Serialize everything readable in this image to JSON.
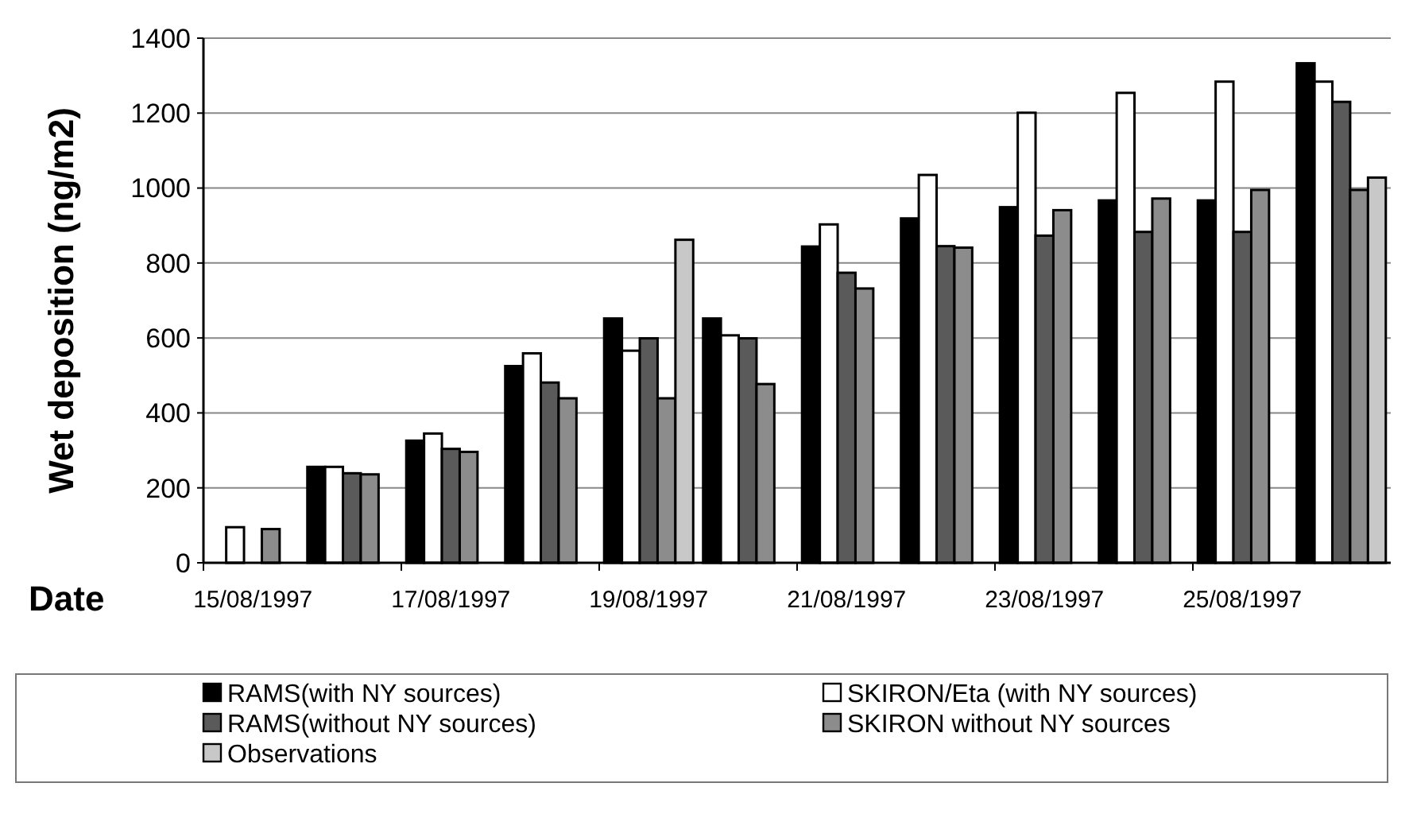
{
  "chart_data": {
    "type": "bar",
    "xlabel": "Date",
    "ylabel": "Wet deposition (ng/m2)",
    "categories": [
      "15/08/1997",
      null,
      "17/08/1997",
      null,
      "19/08/1997",
      null,
      "21/08/1997",
      null,
      "23/08/1997",
      null,
      "25/08/1997",
      null
    ],
    "series": [
      {
        "name": "RAMS(with NY sources)",
        "color": "#000000",
        "values": [
          null,
          256,
          326,
          525,
          652,
          652,
          844,
          919,
          949,
          967,
          967,
          1333
        ]
      },
      {
        "name": "SKIRON/Eta (with NY sources)",
        "color": "#ffffff",
        "values": [
          95,
          256,
          345,
          559,
          566,
          607,
          903,
          1035,
          1201,
          1254,
          1284,
          1284
        ]
      },
      {
        "name": "RAMS(without NY sources)",
        "color": "#5a5a5a",
        "values": [
          null,
          239,
          304,
          481,
          599,
          599,
          774,
          845,
          873,
          883,
          883,
          1230
        ]
      },
      {
        "name": "SKIRON without NY sources",
        "color": "#8c8c8c",
        "values": [
          90,
          236,
          296,
          439,
          439,
          477,
          732,
          841,
          941,
          972,
          995,
          995
        ]
      },
      {
        "name": "Observations",
        "color": "#c8c8c8",
        "values": [
          null,
          null,
          null,
          null,
          862,
          null,
          null,
          null,
          null,
          null,
          null,
          1028
        ]
      }
    ],
    "ylim": [
      0,
      1400
    ],
    "yticks": [
      0,
      200,
      400,
      600,
      800,
      1000,
      1200,
      1400
    ],
    "grid": "y",
    "legend": "bottom"
  }
}
